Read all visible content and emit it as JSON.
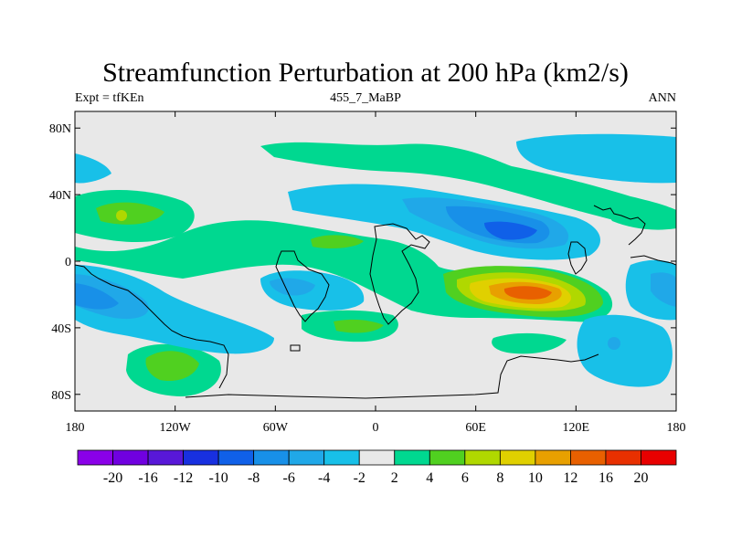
{
  "title": "Streamfunction Perturbation at 200 hPa (km2/s)",
  "subtitle_left": "Expt = tfKEn",
  "subtitle_center": "455_7_MaBP",
  "subtitle_right": "ANN",
  "map": {
    "projection": "cylindrical-equidistant",
    "lon_range": [
      -180,
      180
    ],
    "lat_range": [
      -90,
      90
    ],
    "lat_ticks": [
      "80N",
      "40N",
      "0",
      "40S",
      "80S"
    ],
    "lat_tick_values": [
      80,
      40,
      0,
      -40,
      -80
    ],
    "lon_ticks": [
      "180",
      "120W",
      "60W",
      "0",
      "60E",
      "120E",
      "180"
    ],
    "lon_tick_values": [
      -180,
      -120,
      -60,
      0,
      60,
      120,
      180
    ],
    "background_color": "#e8e8e8"
  },
  "colorbar": {
    "labels": [
      "-20",
      "-16",
      "-12",
      "-10",
      "-8",
      "-6",
      "-4",
      "-2",
      "2",
      "4",
      "6",
      "8",
      "10",
      "12",
      "16",
      "20"
    ],
    "colors": [
      "#8a00e8",
      "#7000e0",
      "#5818d8",
      "#1830e0",
      "#1060e8",
      "#1890e8",
      "#20a8e8",
      "#18c0e8",
      "#e8e8e8",
      "#00d890",
      "#50d020",
      "#b0d800",
      "#e0d000",
      "#e8a000",
      "#e86000",
      "#e83000",
      "#e80000"
    ]
  }
}
